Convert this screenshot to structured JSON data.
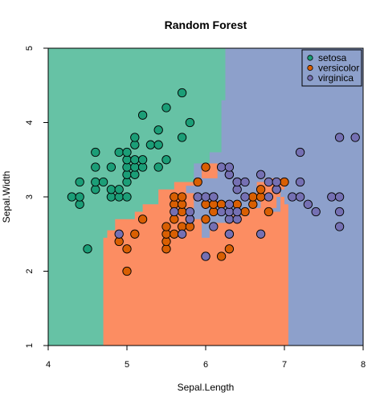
{
  "chart_data": {
    "type": "scatter",
    "title": "Random Forest",
    "xlabel": "Sepal.Length",
    "ylabel": "Sepal.Width",
    "xlim": [
      4,
      8
    ],
    "ylim": [
      1,
      5
    ],
    "xticks": [
      "4",
      "5",
      "6",
      "7",
      "8"
    ],
    "yticks": [
      "1",
      "2",
      "3",
      "4",
      "5"
    ],
    "grid": false,
    "legend_position": "top-right",
    "series": [
      {
        "name": "setosa",
        "color": "#1b9e77",
        "region_color": "#66c2a5",
        "points": [
          [
            4.3,
            3.0
          ],
          [
            4.4,
            2.9
          ],
          [
            4.4,
            3.0
          ],
          [
            4.4,
            3.2
          ],
          [
            4.5,
            2.3
          ],
          [
            4.6,
            3.1
          ],
          [
            4.6,
            3.2
          ],
          [
            4.6,
            3.4
          ],
          [
            4.6,
            3.6
          ],
          [
            4.7,
            3.2
          ],
          [
            4.8,
            3.0
          ],
          [
            4.8,
            3.1
          ],
          [
            4.8,
            3.4
          ],
          [
            4.9,
            3.0
          ],
          [
            4.9,
            3.1
          ],
          [
            4.9,
            3.6
          ],
          [
            5.0,
            3.0
          ],
          [
            5.0,
            3.2
          ],
          [
            5.0,
            3.3
          ],
          [
            5.0,
            3.4
          ],
          [
            5.0,
            3.5
          ],
          [
            5.0,
            3.6
          ],
          [
            5.1,
            3.3
          ],
          [
            5.1,
            3.4
          ],
          [
            5.1,
            3.5
          ],
          [
            5.1,
            3.7
          ],
          [
            5.1,
            3.8
          ],
          [
            5.2,
            3.4
          ],
          [
            5.2,
            3.5
          ],
          [
            5.2,
            4.1
          ],
          [
            5.3,
            3.7
          ],
          [
            5.4,
            3.4
          ],
          [
            5.4,
            3.7
          ],
          [
            5.4,
            3.9
          ],
          [
            5.5,
            3.5
          ],
          [
            5.5,
            4.2
          ],
          [
            5.7,
            3.8
          ],
          [
            5.7,
            4.4
          ],
          [
            5.8,
            4.0
          ]
        ]
      },
      {
        "name": "versicolor",
        "color": "#d95f02",
        "region_color": "#fc8d62",
        "points": [
          [
            4.9,
            2.4
          ],
          [
            5.0,
            2.0
          ],
          [
            5.0,
            2.3
          ],
          [
            5.1,
            2.5
          ],
          [
            5.2,
            2.7
          ],
          [
            5.5,
            2.3
          ],
          [
            5.5,
            2.4
          ],
          [
            5.5,
            2.5
          ],
          [
            5.5,
            2.6
          ],
          [
            5.6,
            2.5
          ],
          [
            5.6,
            2.7
          ],
          [
            5.6,
            2.9
          ],
          [
            5.6,
            3.0
          ],
          [
            5.7,
            2.6
          ],
          [
            5.7,
            2.8
          ],
          [
            5.7,
            2.9
          ],
          [
            5.7,
            3.0
          ],
          [
            5.8,
            2.6
          ],
          [
            5.8,
            2.7
          ],
          [
            5.9,
            3.0
          ],
          [
            5.9,
            3.2
          ],
          [
            6.0,
            2.2
          ],
          [
            6.0,
            2.7
          ],
          [
            6.0,
            2.9
          ],
          [
            6.0,
            3.4
          ],
          [
            6.1,
            2.8
          ],
          [
            6.1,
            2.9
          ],
          [
            6.1,
            3.0
          ],
          [
            6.2,
            2.2
          ],
          [
            6.2,
            2.9
          ],
          [
            6.3,
            2.3
          ],
          [
            6.3,
            2.5
          ],
          [
            6.3,
            3.3
          ],
          [
            6.4,
            2.9
          ],
          [
            6.4,
            3.2
          ],
          [
            6.5,
            2.8
          ],
          [
            6.6,
            2.9
          ],
          [
            6.6,
            3.0
          ],
          [
            6.7,
            3.0
          ],
          [
            6.7,
            3.1
          ],
          [
            6.8,
            2.8
          ],
          [
            6.9,
            3.1
          ],
          [
            7.0,
            3.2
          ]
        ]
      },
      {
        "name": "virginica",
        "color": "#7570b3",
        "region_color": "#8da0cb",
        "points": [
          [
            4.9,
            2.5
          ],
          [
            5.6,
            2.8
          ],
          [
            5.7,
            2.5
          ],
          [
            5.8,
            2.7
          ],
          [
            5.8,
            2.8
          ],
          [
            5.9,
            3.0
          ],
          [
            6.0,
            2.2
          ],
          [
            6.0,
            3.0
          ],
          [
            6.1,
            2.6
          ],
          [
            6.1,
            3.0
          ],
          [
            6.2,
            2.8
          ],
          [
            6.2,
            3.4
          ],
          [
            6.3,
            2.5
          ],
          [
            6.3,
            2.7
          ],
          [
            6.3,
            2.8
          ],
          [
            6.3,
            2.9
          ],
          [
            6.3,
            3.3
          ],
          [
            6.3,
            3.4
          ],
          [
            6.4,
            2.7
          ],
          [
            6.4,
            2.8
          ],
          [
            6.4,
            3.1
          ],
          [
            6.4,
            3.2
          ],
          [
            6.5,
            3.0
          ],
          [
            6.5,
            3.2
          ],
          [
            6.7,
            2.5
          ],
          [
            6.7,
            3.3
          ],
          [
            6.8,
            3.0
          ],
          [
            6.8,
            3.2
          ],
          [
            6.9,
            3.1
          ],
          [
            6.9,
            3.2
          ],
          [
            7.1,
            3.0
          ],
          [
            7.2,
            3.0
          ],
          [
            7.2,
            3.2
          ],
          [
            7.2,
            3.6
          ],
          [
            7.3,
            2.9
          ],
          [
            7.4,
            2.8
          ],
          [
            7.6,
            3.0
          ],
          [
            7.7,
            2.6
          ],
          [
            7.7,
            2.8
          ],
          [
            7.7,
            3.0
          ],
          [
            7.7,
            3.8
          ],
          [
            7.9,
            3.8
          ]
        ]
      }
    ]
  }
}
